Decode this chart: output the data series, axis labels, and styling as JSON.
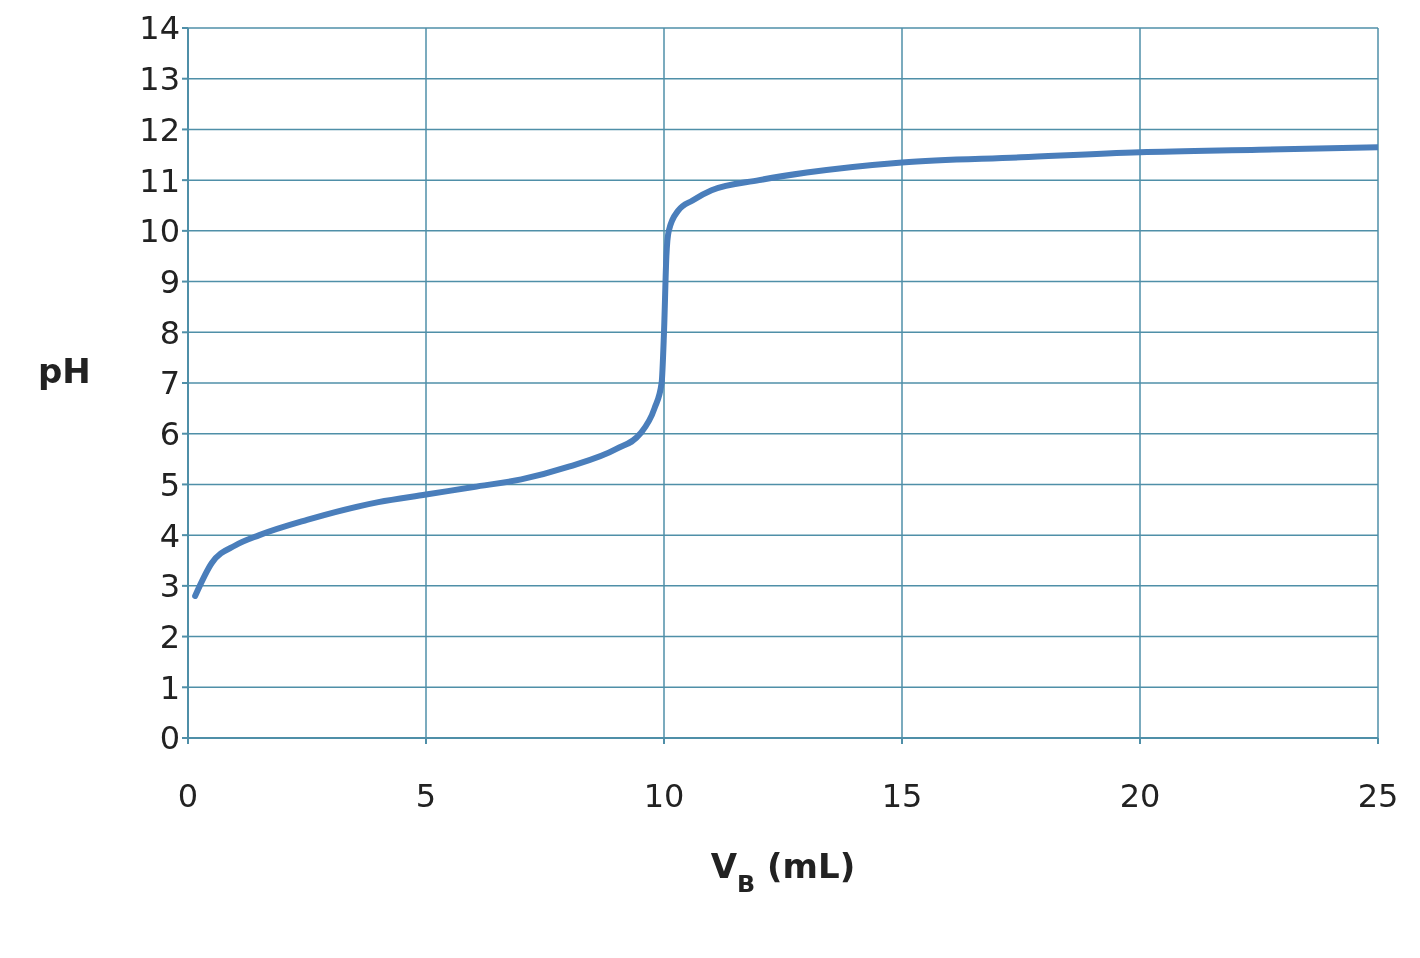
{
  "chart_data": {
    "type": "line",
    "xlabel": "V$_{B}$ (mL)",
    "ylabel": "pH",
    "x": [
      0.15,
      0.5,
      1,
      1.5,
      2.5,
      4,
      5,
      6,
      7,
      8,
      9,
      9.5,
      9.8,
      9.95,
      10,
      10.05,
      10.1,
      10.3,
      10.6,
      11,
      12,
      13,
      15,
      17.5,
      20,
      22.5,
      25
    ],
    "series": [
      {
        "color": "#4a7ebb",
        "values": [
          2.8,
          3.45,
          3.8,
          4.0,
          4.3,
          4.65,
          4.8,
          4.95,
          5.1,
          5.35,
          5.7,
          6.0,
          6.5,
          7.0,
          8.0,
          9.5,
          10.0,
          10.4,
          10.6,
          10.8,
          11.0,
          11.15,
          11.35,
          11.45,
          11.55,
          11.6,
          11.65
        ]
      }
    ],
    "xlim": [
      0,
      25
    ],
    "xticks": [
      0,
      5,
      10,
      15,
      20,
      25
    ],
    "ylim": [
      0,
      14
    ],
    "yticks": [
      0,
      1,
      2,
      3,
      4,
      5,
      6,
      7,
      8,
      9,
      10,
      11,
      12,
      13,
      14
    ],
    "grid": true,
    "legend": false,
    "marker": "none",
    "line_style": "solid"
  }
}
